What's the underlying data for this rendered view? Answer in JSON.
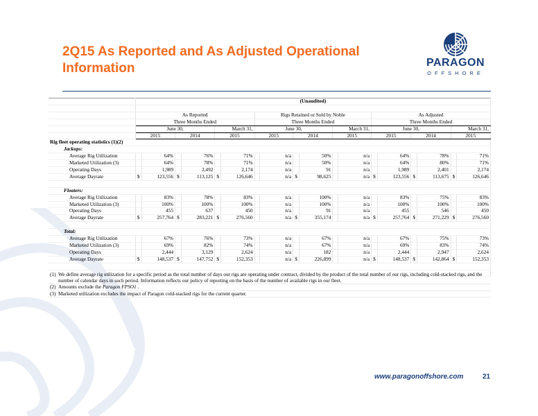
{
  "header": {
    "title": "2Q15 As Reported and As Adjusted Operational Information"
  },
  "logo": {
    "word": "PARAGON",
    "sub": "OFFSHORE"
  },
  "table": {
    "unaudited": "(Unaudited)",
    "groups": [
      "As Reported",
      "Rigs Retained or Sold by Noble",
      "As Adjusted"
    ],
    "period": "Three Months Ended",
    "june": "June 30,",
    "march": "March 31,",
    "years": [
      "2015",
      "2014",
      "2015"
    ],
    "section_title": "Rig fleet operating statistics (1)(2)",
    "sections": [
      {
        "label": "Jackups:",
        "rows": [
          {
            "label": "Average Rig Utilization",
            "vals": [
              "64%",
              "76%",
              "71%",
              "n/a",
              "50%",
              "n/a",
              "64%",
              "78%",
              "71%"
            ]
          },
          {
            "label": "Marketed Utilization (3)",
            "vals": [
              "64%",
              "78%",
              "71%",
              "n/a",
              "50%",
              "n/a",
              "64%",
              "80%",
              "71%"
            ]
          },
          {
            "label": "Operating Days",
            "vals": [
              "1,989",
              "2,492",
              "2,174",
              "n/a",
              "91",
              "n/a",
              "1,989",
              "2,401",
              "2,174"
            ]
          },
          {
            "label": "Average Dayrate",
            "vals": [
              "123,556",
              "113,125",
              "126,646",
              "n/a",
              "98,625",
              "n/a",
              "123,556",
              "113,675",
              "126,646"
            ]
          }
        ]
      },
      {
        "label": "Floaters:",
        "rows": [
          {
            "label": "Average Rig Utilization",
            "vals": [
              "83%",
              "78%",
              "83%",
              "n/a",
              "100%",
              "n/a",
              "83%",
              "75%",
              "83%"
            ]
          },
          {
            "label": "Marketed Utilization (3)",
            "vals": [
              "100%",
              "100%",
              "100%",
              "n/a",
              "100%",
              "n/a",
              "100%",
              "100%",
              "100%"
            ]
          },
          {
            "label": "Operating Days",
            "vals": [
              "455",
              "637",
              "450",
              "n/a",
              "91",
              "n/a",
              "455",
              "546",
              "450"
            ]
          },
          {
            "label": "Average Dayrate",
            "vals": [
              "257,764",
              "283,221",
              "276,560",
              "n/a",
              "355,174",
              "n/a",
              "257,764",
              "271,229",
              "276,560"
            ]
          }
        ]
      },
      {
        "label": "Total:",
        "rows": [
          {
            "label": "Average Rig Utilization",
            "vals": [
              "67%",
              "76%",
              "73%",
              "n/a",
              "67%",
              "n/a",
              "67%",
              "75%",
              "73%"
            ]
          },
          {
            "label": "Marketed Utilization (3)",
            "vals": [
              "69%",
              "82%",
              "74%",
              "n/a",
              "67%",
              "n/a",
              "69%",
              "83%",
              "74%"
            ]
          },
          {
            "label": "Operating Days",
            "vals": [
              "2,444",
              "3,129",
              "2,624",
              "n/a",
              "182",
              "n/a",
              "2,444",
              "2,947",
              "2,624"
            ]
          },
          {
            "label": "Average Dayrate",
            "vals": [
              "148,537",
              "147,752",
              "152,353",
              "n/a",
              "226,899",
              "n/a",
              "148,537",
              "142,864",
              "152,353"
            ]
          }
        ]
      }
    ],
    "currency": "$"
  },
  "footnotes": [
    {
      "num": "(1)",
      "text": "We define average rig utilization for a specific period as the total number of days our rigs are operating under contract, divided by the product of the total number of our rigs, including cold-stacked rigs, and the number of calendar days in such period.  Information reflects our policy of reporting on the basis of the number of available rigs in our fleet."
    },
    {
      "num": "(2)",
      "pre": "Amounts exclude the ",
      "em": "Paragon FPSO1",
      "post": " ."
    },
    {
      "num": "(3)",
      "text": "Marketed utilization excludes the impact of Paragon cold-stacked rigs for the current quarter."
    }
  ],
  "footer": {
    "url": "www.paragonoffshore.com",
    "page": "21"
  },
  "colors": {
    "title": "#f26b21",
    "brand": "#1b3f7a"
  }
}
